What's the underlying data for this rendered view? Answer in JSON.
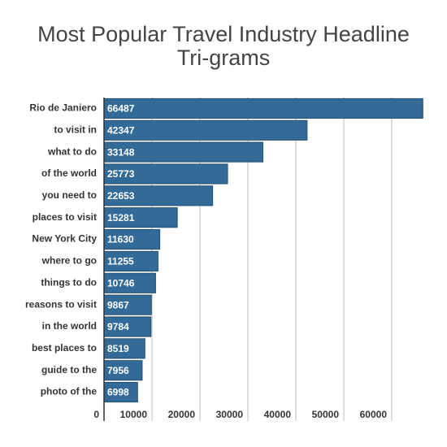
{
  "chart_data": {
    "type": "barh",
    "title": "Most Popular Travel Industry Headline Tri-grams",
    "categories": [
      "Rio de Janiero",
      "to visit in",
      "what to do",
      "of the world",
      "you need to",
      "places to visit",
      "New York City",
      "where to go",
      "things to do",
      "reasons to visit",
      "in the world",
      "best places to",
      "guide to the",
      "photo of the"
    ],
    "values": [
      66487,
      42347,
      33148,
      25773,
      22653,
      15281,
      11630,
      11255,
      10746,
      9867,
      9784,
      8519,
      7956,
      6998
    ],
    "color": "#336b98",
    "xlim": [
      0,
      70000
    ],
    "xticks": [
      0,
      10000,
      20000,
      30000,
      40000,
      50000,
      60000
    ],
    "grid": true
  }
}
